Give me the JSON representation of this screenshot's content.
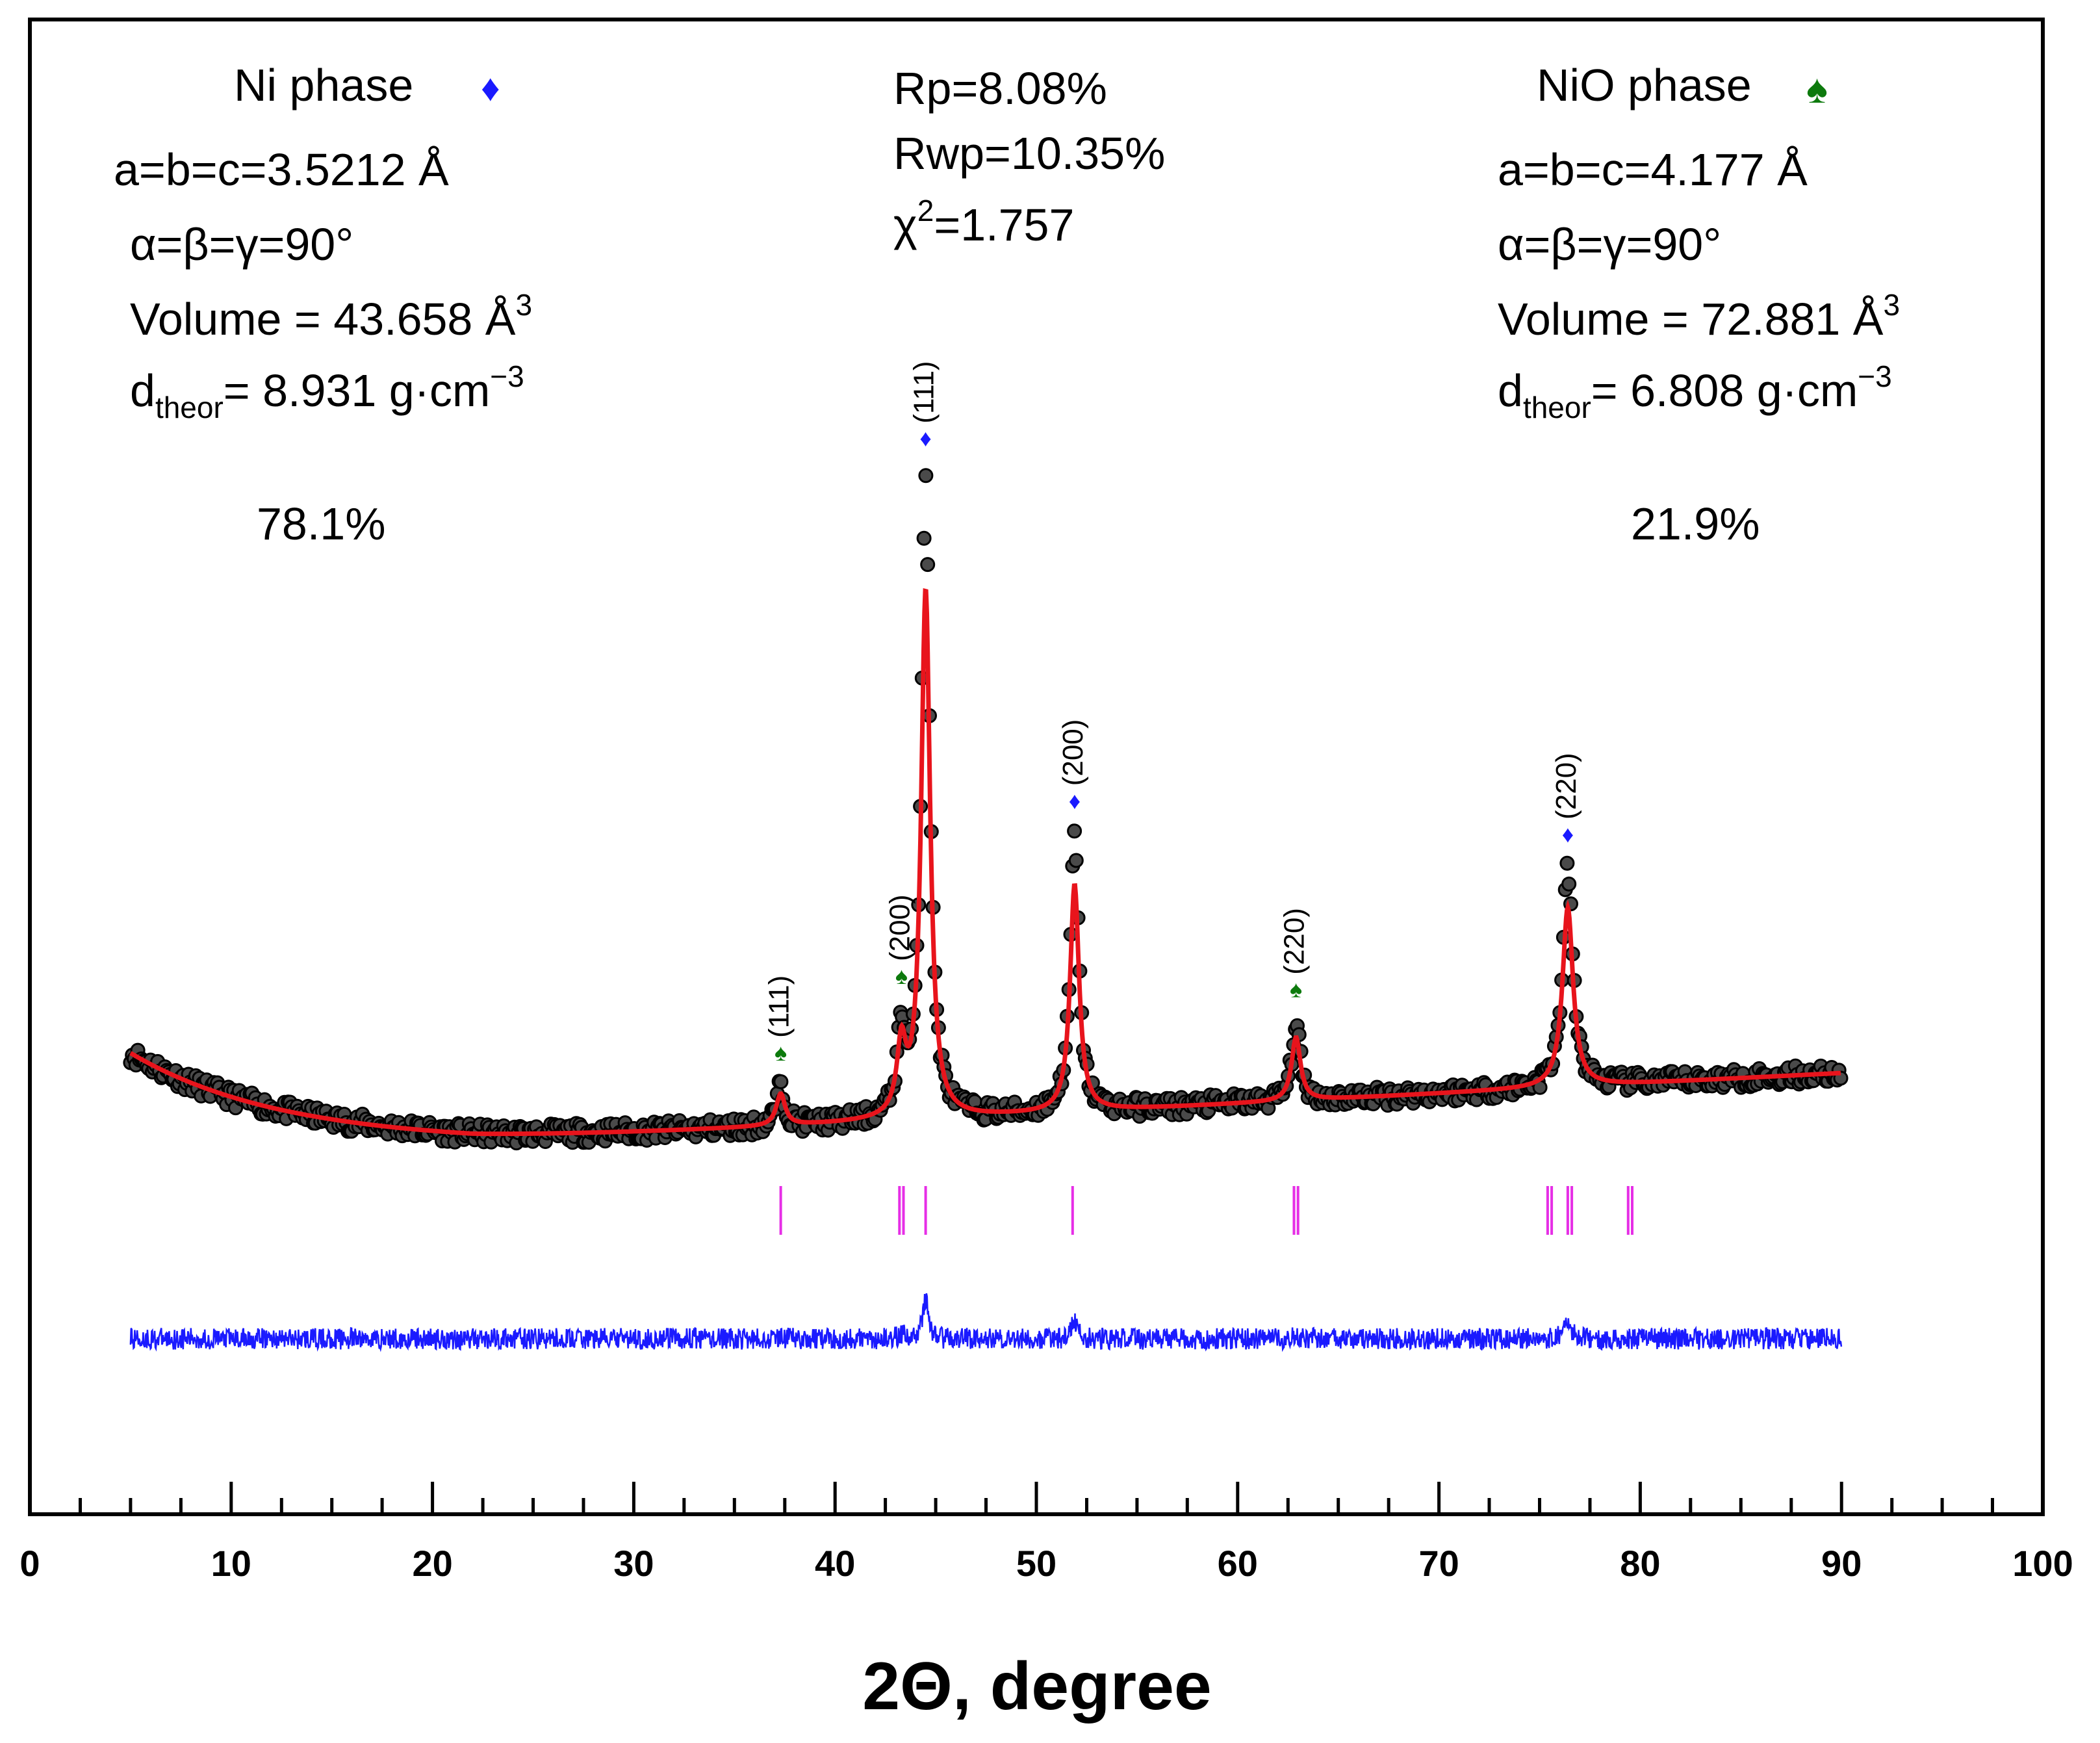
{
  "chart_data": {
    "type": "line",
    "title": "",
    "xlabel": "2Θ, degree",
    "ylabel": "",
    "xlim": [
      0,
      100
    ],
    "x_ticks": [
      0,
      10,
      20,
      30,
      40,
      50,
      60,
      70,
      80,
      90,
      100
    ],
    "y_ticks_shown": false,
    "series": [
      {
        "name": "Observed",
        "style": "black open circles",
        "x_range": [
          5,
          90
        ]
      },
      {
        "name": "Calculated",
        "style": "red line",
        "x_range": [
          5,
          90
        ]
      },
      {
        "name": "Difference",
        "style": "blue line",
        "x_range": [
          5,
          90
        ]
      }
    ],
    "peaks_observed": [
      {
        "two_theta": 37.3,
        "phase": "NiO",
        "hkl": "(111)",
        "rel_intensity": 0.06
      },
      {
        "two_theta": 43.3,
        "phase": "NiO",
        "hkl": "(200)",
        "rel_intensity": 0.13
      },
      {
        "two_theta": 44.5,
        "phase": "Ni",
        "hkl": "(111)",
        "rel_intensity": 1.0
      },
      {
        "two_theta": 51.9,
        "phase": "Ni",
        "hkl": "(200)",
        "rel_intensity": 0.43
      },
      {
        "two_theta": 62.9,
        "phase": "NiO",
        "hkl": "(220)",
        "rel_intensity": 0.12
      },
      {
        "two_theta": 76.4,
        "phase": "Ni",
        "hkl": "(220)",
        "rel_intensity": 0.34
      }
    ],
    "bragg_positions": [
      37.3,
      43.2,
      43.4,
      44.5,
      51.8,
      62.8,
      63.0,
      75.4,
      75.6,
      76.4,
      76.6,
      79.4,
      79.6
    ],
    "ni_phase": {
      "label": "Ni phase",
      "marker": "♦",
      "marker_color": "#1a1aff",
      "lattice": "a=b=c=3.5212 Å",
      "angles": "α=β=γ=90°",
      "volume": "Volume = 43.658 Å",
      "volume_exp": "3",
      "density_prefix": "d",
      "density_sub": "theor",
      "density_value": "= 8.931 g·cm",
      "density_exp": "−3",
      "fraction": "78.1%"
    },
    "nio_phase": {
      "label": "NiO phase",
      "marker": "♠",
      "marker_color": "#0d7a0d",
      "lattice": "a=b=c=4.177 Å",
      "angles": "α=β=γ=90°",
      "volume": "Volume = 72.881 Å",
      "volume_exp": "3",
      "density_prefix": "d",
      "density_sub": "theor",
      "density_value": "= 6.808 g·cm",
      "density_exp": "−3",
      "fraction": "21.9%"
    },
    "refinement": {
      "rp": "Rp=8.08%",
      "rwp": "Rwp=10.35%",
      "chi_prefix": "χ",
      "chi_exp": "2",
      "chi_value": "=1.757"
    }
  },
  "colors": {
    "observed": "#000000",
    "calculated": "#e8141c",
    "difference": "#1a1aff",
    "bragg": "#e62ee6",
    "frame": "#000000"
  }
}
